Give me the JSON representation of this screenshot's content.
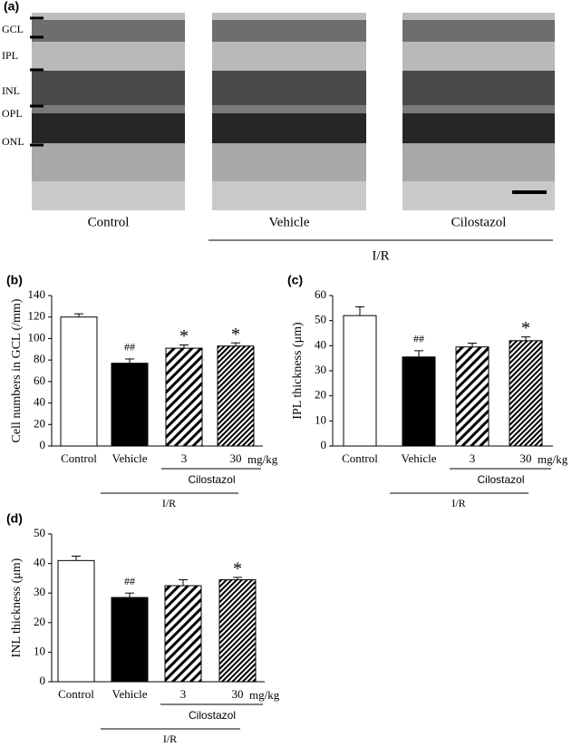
{
  "panel_a": {
    "label": "(a)",
    "layers": [
      "GCL",
      "IPL",
      "INL",
      "OPL",
      "ONL"
    ],
    "captions": [
      "Control",
      "Vehicle",
      "Cilostazol"
    ],
    "group_label": "I/R"
  },
  "chart_data": [
    {
      "type": "bar",
      "panel_label": "(b)",
      "ylabel": "Cell numbers in GCL (/mm)",
      "categories": [
        "Control",
        "Vehicle",
        "3",
        "30"
      ],
      "unit": "mg/kg",
      "group_labels": [
        "Cilostazol",
        "I/R"
      ],
      "values": [
        120,
        77,
        91,
        93
      ],
      "errors": [
        3,
        4,
        3,
        3
      ],
      "annotations": [
        null,
        "##",
        "*",
        "*"
      ],
      "bar_fills": [
        "#ffffff",
        "#000000",
        "hatch",
        "hatch-dense"
      ],
      "ylim": [
        0,
        140
      ],
      "yticks": [
        0,
        20,
        40,
        60,
        80,
        100,
        120,
        140
      ]
    },
    {
      "type": "bar",
      "panel_label": "(c)",
      "ylabel": "IPL thickness (μm)",
      "categories": [
        "Control",
        "Vehicle",
        "3",
        "30"
      ],
      "unit": "mg/kg",
      "group_labels": [
        "Cilostazol",
        "I/R"
      ],
      "values": [
        52,
        35.5,
        39.5,
        42
      ],
      "errors": [
        3.5,
        2.5,
        1.5,
        1.5
      ],
      "annotations": [
        null,
        "##",
        null,
        "*"
      ],
      "bar_fills": [
        "#ffffff",
        "#000000",
        "hatch",
        "hatch-dense"
      ],
      "ylim": [
        0,
        60
      ],
      "yticks": [
        0,
        10,
        20,
        30,
        40,
        50,
        60
      ]
    },
    {
      "type": "bar",
      "panel_label": "(d)",
      "ylabel": "INL thickness (μm)",
      "categories": [
        "Control",
        "Vehicle",
        "3",
        "30"
      ],
      "unit": "mg/kg",
      "group_labels": [
        "Cilostazol",
        "I/R"
      ],
      "values": [
        41,
        28.5,
        32.5,
        34.5
      ],
      "errors": [
        1.5,
        1.5,
        2,
        0.8
      ],
      "annotations": [
        null,
        "##",
        null,
        "*"
      ],
      "bar_fills": [
        "#ffffff",
        "#000000",
        "hatch",
        "hatch-dense"
      ],
      "ylim": [
        0,
        50
      ],
      "yticks": [
        0,
        10,
        20,
        30,
        40,
        50
      ]
    }
  ]
}
